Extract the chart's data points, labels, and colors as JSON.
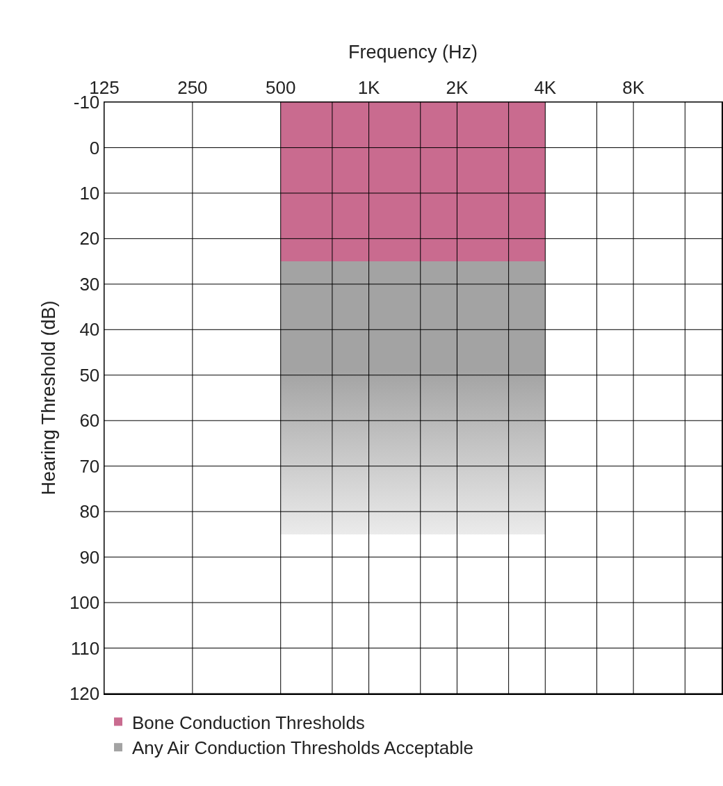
{
  "chart_data": {
    "type": "bar",
    "xlabel": "Frequency (Hz)",
    "ylabel": "Hearing Threshold (dB)",
    "log": "x",
    "x": [
      1414
    ],
    "xlim": [
      125,
      16000
    ],
    "xticks": [
      125,
      250,
      500,
      {
        "value": 750,
        "label": null
      },
      {
        "value": 1000,
        "label": "1K"
      },
      {
        "value": 1500,
        "label": null
      },
      {
        "value": 2000,
        "label": "2K"
      },
      {
        "value": 3000,
        "label": null
      },
      {
        "value": 4000,
        "label": "4K"
      },
      {
        "value": 6000,
        "label": null
      },
      {
        "value": 8000,
        "label": "8K"
      },
      {
        "value": 12000,
        "label": null
      }
    ],
    "ylim": [
      120,
      -10
    ],
    "yticks": [
      -10,
      0,
      10,
      20,
      30,
      40,
      50,
      60,
      70,
      80,
      90,
      100,
      110,
      120
    ],
    "grid": true,
    "legend": "bottom",
    "series": [
      {
        "name": "Bone Conduction Thresholds",
        "color": "#c96b8f",
        "base": [
          -10
        ],
        "values": [
          35
        ]
      },
      {
        "name": "Any Air Conduction Thresholds Acceptable",
        "color": "#a3a3a3",
        "base": [
          25
        ],
        "values": [
          60
        ]
      }
    ]
  }
}
